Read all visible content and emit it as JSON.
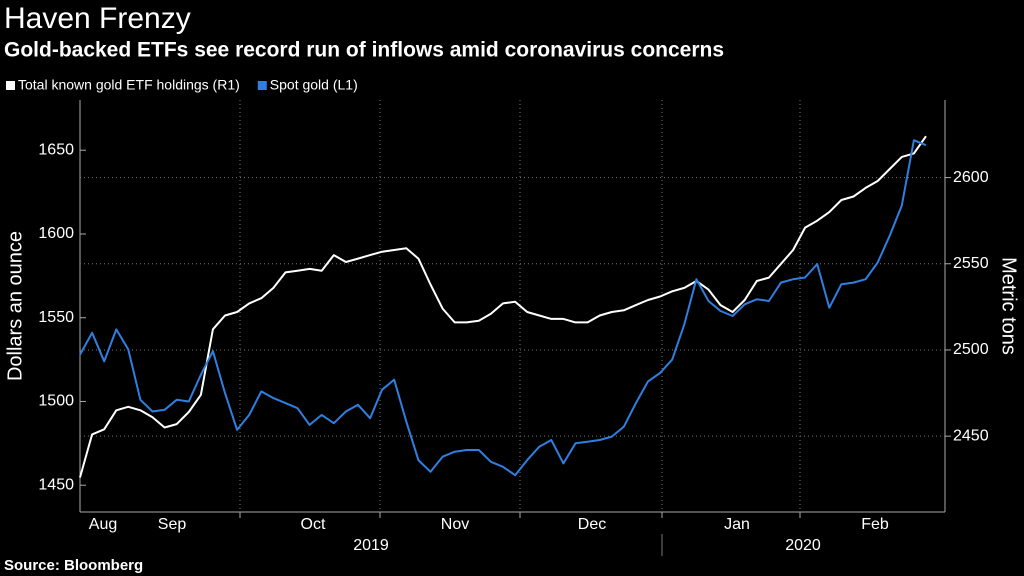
{
  "chart_data": {
    "type": "line",
    "title": "Haven Frenzy",
    "subtitle": "Gold-backed ETFs see record run of inflows amid coronavirus concerns",
    "source": "Source: Bloomberg",
    "ylabel": "Dollars an ounce",
    "y2label": "Metric tons",
    "x_tick_labels": [
      "Aug",
      "Sep",
      "Oct",
      "Nov",
      "Dec",
      "Jan",
      "Feb"
    ],
    "years": [
      "2019",
      "2020"
    ],
    "ylim": [
      1434,
      1680
    ],
    "yticks": [
      1450,
      1500,
      1550,
      1600,
      1650
    ],
    "y2lim": [
      2406,
      2645
    ],
    "y2ticks": [
      2450,
      2500,
      2550,
      2600
    ],
    "grid": true,
    "legend": "top-left",
    "series": [
      {
        "name": "Total known gold ETF holdings (R1)",
        "color": "#ffffff",
        "axis": "y2",
        "values": [
          2426,
          2451,
          2454,
          2465,
          2467,
          2465,
          2461,
          2455,
          2457,
          2464,
          2474,
          2512,
          2520,
          2522,
          2527,
          2530,
          2536,
          2545,
          2546,
          2547,
          2546,
          2555,
          2551,
          2553,
          2555,
          2557,
          2558,
          2559,
          2553,
          2538,
          2524,
          2516,
          2516,
          2517,
          2521,
          2527,
          2528,
          2522,
          2520,
          2518,
          2518,
          2516,
          2516,
          2520,
          2522,
          2523,
          2526,
          2529,
          2531,
          2534,
          2536,
          2540,
          2535,
          2526,
          2522,
          2529,
          2540,
          2542,
          2550,
          2558,
          2571,
          2575,
          2580,
          2587,
          2589,
          2594,
          2598,
          2605,
          2612,
          2614,
          2624
        ]
      },
      {
        "name": "Spot gold (L1)",
        "color": "#2f7fe0",
        "axis": "y",
        "values": [
          1528,
          1541,
          1524,
          1543,
          1531,
          1501,
          1494,
          1495,
          1501,
          1500,
          1516,
          1530,
          1505,
          1483,
          1492,
          1506,
          1502,
          1499,
          1496,
          1486,
          1492,
          1487,
          1494,
          1498,
          1490,
          1507,
          1513,
          1488,
          1465,
          1458,
          1467,
          1470,
          1471,
          1471,
          1464,
          1461,
          1456,
          1465,
          1473,
          1477,
          1463,
          1475,
          1476,
          1477,
          1479,
          1485,
          1499,
          1512,
          1517,
          1525,
          1546,
          1573,
          1560,
          1554,
          1551,
          1558,
          1561,
          1560,
          1571,
          1573,
          1574,
          1582,
          1556,
          1570,
          1571,
          1573,
          1583,
          1599,
          1617,
          1656,
          1653
        ]
      }
    ]
  }
}
